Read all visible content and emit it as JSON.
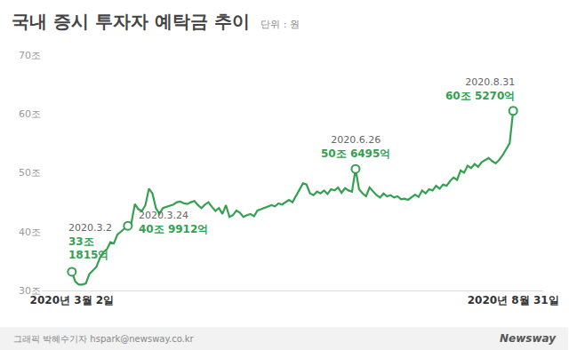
{
  "chart_data": {
    "type": "line",
    "title": "국내 증시 투자자 예탁금 추이",
    "subtitle": "단위 : 원",
    "color": "#35a052",
    "marker": "circle",
    "grid": false,
    "categories": [
      "2020년 3월 2일",
      null,
      null,
      null,
      null,
      null,
      null,
      null,
      null,
      null,
      null,
      null,
      null,
      null,
      null,
      null,
      null,
      null,
      null,
      null,
      null,
      null,
      null,
      null,
      null,
      null,
      null,
      null,
      null,
      null,
      null,
      null,
      null,
      null,
      null,
      null,
      null,
      null,
      null,
      null,
      null,
      null,
      null,
      null,
      null,
      null,
      null,
      null,
      null,
      null,
      null,
      null,
      null,
      null,
      null,
      null,
      null,
      null,
      null,
      null,
      null,
      null,
      null,
      null,
      null,
      null,
      null,
      null,
      null,
      null,
      null,
      null,
      null,
      null,
      null,
      null,
      null,
      null,
      null,
      null,
      null,
      null,
      null,
      null,
      null,
      null,
      null,
      null,
      null,
      null,
      null,
      null,
      null,
      null,
      null,
      null,
      null,
      null,
      null,
      null,
      null,
      null,
      null,
      null,
      null,
      null,
      null,
      null,
      null,
      null,
      null,
      null,
      null,
      null,
      null,
      null,
      null,
      null,
      null,
      null,
      null,
      null,
      null,
      null,
      null,
      null,
      "2020년 8월 31일"
    ],
    "values": [
      33.1815,
      31.5,
      31.0,
      31.0,
      31.2,
      32.8,
      33.4,
      34.0,
      35.5,
      36.5,
      37.0,
      38.2,
      38.0,
      39.5,
      40.0,
      40.5,
      40.9912,
      41.5,
      44.7,
      43.8,
      43.5,
      44.5,
      47.3,
      46.5,
      44.0,
      43.0,
      44.0,
      44.2,
      44.5,
      44.6,
      45.0,
      45.1,
      44.8,
      44.7,
      45.0,
      45.2,
      44.5,
      44.0,
      44.6,
      45.0,
      44.2,
      43.5,
      44.0,
      43.0,
      44.5,
      42.5,
      42.8,
      43.6,
      43.2,
      42.5,
      42.8,
      43.0,
      42.6,
      43.6,
      43.8,
      44.0,
      44.2,
      44.5,
      44.3,
      44.8,
      44.6,
      45.0,
      45.4,
      45.0,
      46.0,
      47.0,
      48.2,
      48.0,
      46.5,
      46.2,
      46.8,
      46.5,
      47.0,
      46.4,
      47.2,
      47.0,
      47.5,
      46.6,
      47.4,
      47.0,
      46.8,
      50.6495,
      47.2,
      46.5,
      46.0,
      47.5,
      46.8,
      46.2,
      45.8,
      46.5,
      46.0,
      46.2,
      45.8,
      46.0,
      45.5,
      45.6,
      45.4,
      45.8,
      46.3,
      45.9,
      47.0,
      46.5,
      47.2,
      47.0,
      47.8,
      47.3,
      48.0,
      47.8,
      48.6,
      49.2,
      48.8,
      50.4,
      50.0,
      51.2,
      50.8,
      51.5,
      51.0,
      51.8,
      52.2,
      52.5,
      52.0,
      51.6,
      52.2,
      53.0,
      54.0,
      55.0,
      60.527
    ],
    "ylim": [
      30,
      70
    ],
    "yticks": [
      {
        "value": 30,
        "label": "30조"
      },
      {
        "value": 40,
        "label": "40조"
      },
      {
        "value": 50,
        "label": "50조"
      },
      {
        "value": 60,
        "label": "60조"
      },
      {
        "value": 70,
        "label": "70조"
      }
    ],
    "annotations": [
      {
        "index": 0,
        "date": "2020.3.2",
        "label": [
          "33조",
          "1815억"
        ]
      },
      {
        "index": 16,
        "date": "2020.3.24",
        "label": [
          "40조 9912억"
        ]
      },
      {
        "index": 81,
        "date": "2020.6.26",
        "label": [
          "50조 6495억"
        ]
      },
      {
        "index": 126,
        "date": "2020.8.31",
        "label": [
          "60조 5270억"
        ]
      }
    ],
    "source": "그래픽 박혜수기자 hspark@newsway.co.kr",
    "brand": "Newsway"
  }
}
